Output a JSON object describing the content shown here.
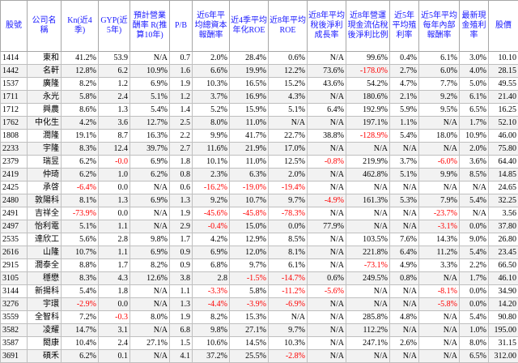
{
  "headers": [
    "股號",
    "公司名稱",
    "Kn(近4季)",
    "GYP(近5年)",
    "預計營業酬率 R(推算10年)",
    "P/B",
    "近6年平均總資本報酬率",
    "近4季平均年化ROE",
    "近8年平均ROE",
    "近8年平均稅後淨利成長率",
    "近8年營運現金流佔稅後淨利比例",
    "近5年平均殖利率",
    "近5年平均每年內部報酬率",
    "最新現金殖利率",
    "股價"
  ],
  "colors": {
    "header_text": "#1a1aff",
    "negative": "#ff0000",
    "grid": "#bfbfbf",
    "alt_row": "#f2f2f2"
  },
  "rows": [
    [
      "1414",
      "東和",
      "41.2%",
      "53.9",
      "N/A",
      "0.7",
      "2.0%",
      "28.4%",
      "0.6%",
      "N/A",
      "99.6%",
      "0.4%",
      "6.1%",
      "3.0%",
      "10.10"
    ],
    [
      "1442",
      "名軒",
      "12.8%",
      "6.2",
      "10.9%",
      "1.6",
      "6.6%",
      "19.9%",
      "12.2%",
      "73.6%",
      "-178.0%",
      "2.7%",
      "6.0%",
      "4.0%",
      "28.15"
    ],
    [
      "1537",
      "廣隆",
      "8.2%",
      "1.2",
      "6.9%",
      "1.9",
      "10.3%",
      "16.5%",
      "15.2%",
      "43.6%",
      "54.2%",
      "4.7%",
      "7.7%",
      "5.0%",
      "49.55"
    ],
    [
      "1711",
      "永光",
      "5.8%",
      "2.4",
      "5.1%",
      "1.2",
      "3.7%",
      "16.9%",
      "4.3%",
      "N/A",
      "180.6%",
      "2.1%",
      "9.2%",
      "6.1%",
      "21.40"
    ],
    [
      "1712",
      "興農",
      "8.6%",
      "1.3",
      "5.4%",
      "1.4",
      "5.2%",
      "15.9%",
      "5.1%",
      "6.4%",
      "192.9%",
      "5.9%",
      "9.5%",
      "6.5%",
      "16.25"
    ],
    [
      "1762",
      "中化生",
      "4.2%",
      "3.6",
      "12.7%",
      "2.5",
      "8.0%",
      "11.0%",
      "N/A",
      "N/A",
      "197.1%",
      "1.1%",
      "N/A",
      "1.7%",
      "52.10"
    ],
    [
      "1808",
      "潤隆",
      "19.1%",
      "8.7",
      "16.3%",
      "2.2",
      "9.9%",
      "41.7%",
      "22.7%",
      "38.8%",
      "-128.9%",
      "5.4%",
      "18.0%",
      "10.9%",
      "46.00"
    ],
    [
      "2233",
      "宇隆",
      "8.3%",
      "12.4",
      "39.7%",
      "2.7",
      "11.6%",
      "21.9%",
      "17.0%",
      "N/A",
      "N/A",
      "N/A",
      "N/A",
      "2.0%",
      "75.80"
    ],
    [
      "2379",
      "瑞昱",
      "6.2%",
      "-0.0",
      "6.9%",
      "1.8",
      "10.1%",
      "11.0%",
      "12.5%",
      "-0.8%",
      "219.9%",
      "3.7%",
      "-6.0%",
      "3.6%",
      "64.40"
    ],
    [
      "2419",
      "仲琦",
      "6.2%",
      "1.0",
      "6.2%",
      "0.8",
      "2.3%",
      "6.3%",
      "2.0%",
      "N/A",
      "462.8%",
      "5.1%",
      "9.9%",
      "8.5%",
      "14.85"
    ],
    [
      "2425",
      "承啓",
      "-6.4%",
      "0.0",
      "N/A",
      "0.6",
      "-16.2%",
      "-19.0%",
      "-19.4%",
      "N/A",
      "N/A",
      "N/A",
      "N/A",
      "N/A",
      "24.65"
    ],
    [
      "2480",
      "敦陽科",
      "8.1%",
      "1.3",
      "6.9%",
      "1.3",
      "9.2%",
      "10.7%",
      "9.7%",
      "-4.9%",
      "161.3%",
      "5.3%",
      "7.9%",
      "5.4%",
      "32.25"
    ],
    [
      "2491",
      "吉祥全",
      "-73.9%",
      "0.0",
      "N/A",
      "1.9",
      "-45.6%",
      "-45.8%",
      "-78.3%",
      "N/A",
      "N/A",
      "N/A",
      "-23.7%",
      "N/A",
      "3.56"
    ],
    [
      "2497",
      "怡利電",
      "5.1%",
      "1.1",
      "N/A",
      "2.9",
      "-0.4%",
      "15.0%",
      "0.0%",
      "77.9%",
      "N/A",
      "N/A",
      "-3.1%",
      "0.0%",
      "37.80"
    ],
    [
      "2535",
      "達欣工",
      "5.6%",
      "2.8",
      "9.8%",
      "1.7",
      "4.2%",
      "12.9%",
      "8.5%",
      "N/A",
      "103.5%",
      "7.6%",
      "14.3%",
      "9.0%",
      "26.80"
    ],
    [
      "2616",
      "山隆",
      "10.7%",
      "1.1",
      "6.9%",
      "0.9",
      "6.9%",
      "12.0%",
      "8.1%",
      "N/A",
      "221.8%",
      "6.4%",
      "11.2%",
      "5.4%",
      "23.45"
    ],
    [
      "2915",
      "潤泰全",
      "8.8%",
      "1.7",
      "8.2%",
      "0.9",
      "6.8%",
      "9.7%",
      "6.1%",
      "N/A",
      "-73.1%",
      "4.9%",
      "3.3%",
      "2.2%",
      "66.50"
    ],
    [
      "3105",
      "穩懋",
      "8.3%",
      "4.3",
      "12.6%",
      "3.8",
      "2.8",
      "-1.5%",
      "-14.7%",
      "0.6%",
      "249.5%",
      "0.8%",
      "N/A",
      "1.7%",
      "46.10"
    ],
    [
      "3144",
      "新揚科",
      "5.4%",
      "1.8",
      "N/A",
      "1.1",
      "-3.3%",
      "5.8%",
      "-11.2%",
      "-5.6%",
      "N/A",
      "N/A",
      "-8.1%",
      "0.0%",
      "34.90"
    ],
    [
      "3276",
      "宇環",
      "-2.9%",
      "0.0",
      "N/A",
      "1.3",
      "-4.4%",
      "-3.9%",
      "-6.9%",
      "N/A",
      "N/A",
      "N/A",
      "-5.8%",
      "0.0%",
      "14.20"
    ],
    [
      "3559",
      "全智科",
      "7.2%",
      "-0.3",
      "8.0%",
      "1.9",
      "8.2%",
      "15.3%",
      "N/A",
      "N/A",
      "285.8%",
      "4.8%",
      "N/A",
      "5.4%",
      "90.80"
    ],
    [
      "3582",
      "凌耀",
      "14.7%",
      "3.1",
      "N/A",
      "6.8",
      "9.8%",
      "27.1%",
      "9.7%",
      "N/A",
      "112.2%",
      "N/A",
      "N/A",
      "1.0%",
      "195.00"
    ],
    [
      "3587",
      "閎康",
      "10.4%",
      "2.4",
      "27.1%",
      "1.5",
      "10.6%",
      "14.5%",
      "10.3%",
      "N/A",
      "247.1%",
      "2.6%",
      "N/A",
      "8.0%",
      "31.15"
    ],
    [
      "3691",
      "碩禾",
      "6.2%",
      "0.1",
      "N/A",
      "4.1",
      "37.2%",
      "25.5%",
      "-2.8%",
      "N/A",
      "N/A",
      "N/A",
      "N/A",
      "6.5%",
      "312.00"
    ]
  ]
}
